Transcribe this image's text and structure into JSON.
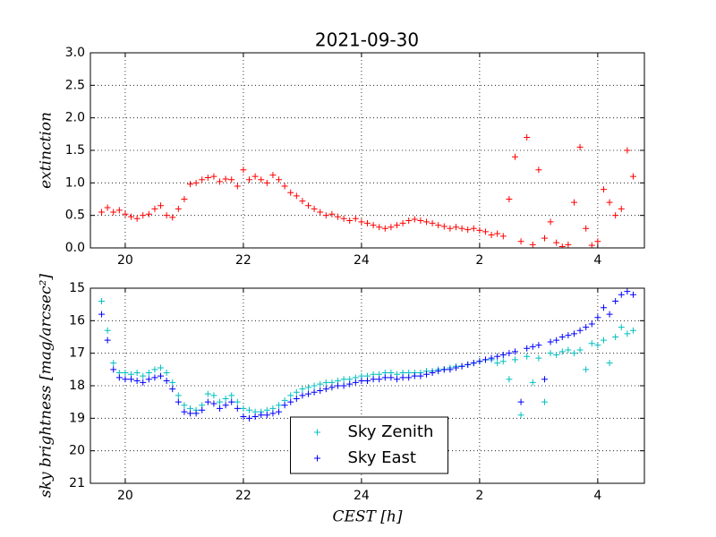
{
  "title": "2021-09-30",
  "chart_data": [
    {
      "type": "scatter",
      "ylabel": "extinction",
      "color": "#ff0000",
      "x": [
        19.6,
        19.7,
        19.8,
        19.9,
        20.0,
        20.1,
        20.2,
        20.3,
        20.4,
        20.5,
        20.6,
        20.7,
        20.8,
        20.9,
        21.0,
        21.1,
        21.2,
        21.3,
        21.4,
        21.5,
        21.6,
        21.7,
        21.8,
        21.9,
        22.0,
        22.1,
        22.2,
        22.3,
        22.4,
        22.5,
        22.6,
        22.7,
        22.8,
        22.9,
        23.0,
        23.1,
        23.2,
        23.3,
        23.4,
        23.5,
        23.6,
        23.7,
        23.8,
        23.9,
        24.0,
        24.1,
        24.2,
        24.3,
        24.4,
        24.5,
        24.6,
        24.7,
        24.8,
        24.9,
        25.0,
        25.1,
        25.2,
        25.3,
        25.4,
        25.5,
        25.6,
        25.7,
        25.8,
        25.9,
        26.0,
        26.1,
        26.2,
        26.3,
        26.4,
        26.5,
        26.6,
        26.7,
        26.8,
        26.9,
        27.0,
        27.1,
        27.2,
        27.3,
        27.4,
        27.5,
        27.6,
        27.7,
        27.8,
        27.9,
        28.0,
        28.1,
        28.2,
        28.3,
        28.4,
        28.5,
        28.6
      ],
      "values": [
        0.55,
        0.62,
        0.55,
        0.58,
        0.52,
        0.48,
        0.45,
        0.5,
        0.52,
        0.6,
        0.65,
        0.5,
        0.47,
        0.6,
        0.75,
        0.98,
        1.0,
        1.05,
        1.08,
        1.1,
        1.02,
        1.06,
        1.05,
        0.95,
        1.2,
        1.05,
        1.1,
        1.05,
        1.0,
        1.12,
        1.05,
        0.95,
        0.85,
        0.8,
        0.72,
        0.65,
        0.6,
        0.55,
        0.5,
        0.52,
        0.48,
        0.45,
        0.42,
        0.45,
        0.4,
        0.38,
        0.35,
        0.32,
        0.3,
        0.32,
        0.35,
        0.38,
        0.42,
        0.44,
        0.42,
        0.4,
        0.38,
        0.35,
        0.33,
        0.3,
        0.32,
        0.3,
        0.28,
        0.3,
        0.27,
        0.25,
        0.2,
        0.22,
        0.18,
        0.75,
        1.4,
        0.1,
        1.7,
        0.05,
        1.2,
        0.15,
        0.4,
        0.08,
        0.02,
        0.05,
        0.7,
        1.55,
        0.3,
        0.04,
        0.1,
        0.9,
        0.7,
        0.5,
        0.6,
        1.5,
        1.1
      ],
      "xlim": [
        19.41,
        28.79
      ],
      "xticks": [
        20,
        22,
        24,
        {
          "value": 26,
          "label": "2"
        },
        {
          "value": 28,
          "label": "4"
        }
      ],
      "ylim": [
        0,
        3
      ],
      "yticks": [
        {
          "value": 0,
          "label": "0.0"
        },
        {
          "value": 0.5,
          "label": "0.5"
        },
        {
          "value": 1,
          "label": "1.0"
        },
        {
          "value": 1.5,
          "label": "1.5"
        },
        {
          "value": 2,
          "label": "2.0"
        },
        {
          "value": 2.5,
          "label": "2.5"
        },
        {
          "value": 3,
          "label": "3.0"
        }
      ],
      "grid": true
    },
    {
      "type": "scatter",
      "ylabel": "sky brightness [mag/arcsec²]",
      "xlabel": "CEST [h]",
      "x": [
        19.6,
        19.7,
        19.8,
        19.9,
        20.0,
        20.1,
        20.2,
        20.3,
        20.4,
        20.5,
        20.6,
        20.7,
        20.8,
        20.9,
        21.0,
        21.1,
        21.2,
        21.3,
        21.4,
        21.5,
        21.6,
        21.7,
        21.8,
        21.9,
        22.0,
        22.1,
        22.2,
        22.3,
        22.4,
        22.5,
        22.6,
        22.7,
        22.8,
        22.9,
        23.0,
        23.1,
        23.2,
        23.3,
        23.4,
        23.5,
        23.6,
        23.7,
        23.8,
        23.9,
        24.0,
        24.1,
        24.2,
        24.3,
        24.4,
        24.5,
        24.6,
        24.7,
        24.8,
        24.9,
        25.0,
        25.1,
        25.2,
        25.3,
        25.4,
        25.5,
        25.6,
        25.7,
        25.8,
        25.9,
        26.0,
        26.1,
        26.2,
        26.3,
        26.4,
        26.5,
        26.6,
        26.7,
        26.8,
        26.9,
        27.0,
        27.1,
        27.2,
        27.3,
        27.4,
        27.5,
        27.6,
        27.7,
        27.8,
        27.9,
        28.0,
        28.1,
        28.2,
        28.3,
        28.4,
        28.5,
        28.6
      ],
      "series": [
        {
          "name": "Sky Zenith",
          "color": "#00bfbf",
          "values": [
            15.4,
            16.3,
            17.3,
            17.6,
            17.6,
            17.65,
            17.6,
            17.7,
            17.6,
            17.5,
            17.45,
            17.6,
            17.9,
            18.3,
            18.6,
            18.7,
            18.75,
            18.6,
            18.25,
            18.3,
            18.5,
            18.4,
            18.3,
            18.5,
            18.7,
            18.75,
            18.8,
            18.8,
            18.75,
            18.7,
            18.6,
            18.45,
            18.3,
            18.2,
            18.1,
            18.05,
            18.0,
            17.95,
            17.9,
            17.9,
            17.85,
            17.8,
            17.8,
            17.75,
            17.7,
            17.7,
            17.65,
            17.65,
            17.6,
            17.6,
            17.65,
            17.6,
            17.6,
            17.6,
            17.6,
            17.55,
            17.55,
            17.5,
            17.5,
            17.45,
            17.4,
            17.4,
            17.35,
            17.3,
            17.25,
            17.2,
            17.2,
            17.3,
            17.25,
            17.8,
            17.2,
            18.9,
            17.1,
            17.9,
            17.15,
            18.5,
            17.0,
            17.05,
            16.95,
            16.9,
            17.0,
            16.9,
            17.5,
            16.7,
            16.75,
            16.6,
            17.3,
            16.5,
            16.2,
            16.4,
            16.3
          ]
        },
        {
          "name": "Sky East",
          "color": "#0000ff",
          "values": [
            15.8,
            16.6,
            17.5,
            17.75,
            17.8,
            17.8,
            17.85,
            17.9,
            17.8,
            17.75,
            17.7,
            17.85,
            18.1,
            18.5,
            18.8,
            18.85,
            18.85,
            18.75,
            18.5,
            18.55,
            18.7,
            18.6,
            18.5,
            18.7,
            18.95,
            19.0,
            18.95,
            18.9,
            18.9,
            18.85,
            18.8,
            18.6,
            18.5,
            18.4,
            18.3,
            18.25,
            18.2,
            18.15,
            18.1,
            18.05,
            18.0,
            18.0,
            17.95,
            17.9,
            17.85,
            17.85,
            17.8,
            17.8,
            17.75,
            17.75,
            17.8,
            17.75,
            17.75,
            17.7,
            17.7,
            17.65,
            17.6,
            17.55,
            17.5,
            17.5,
            17.45,
            17.4,
            17.35,
            17.3,
            17.25,
            17.2,
            17.15,
            17.1,
            17.05,
            17.0,
            16.95,
            18.5,
            16.85,
            16.8,
            16.75,
            17.8,
            16.65,
            16.6,
            16.5,
            16.45,
            16.4,
            16.3,
            16.2,
            16.1,
            15.9,
            15.6,
            15.8,
            15.4,
            15.2,
            15.1,
            15.2
          ]
        }
      ],
      "xlim": [
        19.41,
        28.79
      ],
      "xticks": [
        20,
        22,
        24,
        {
          "value": 26,
          "label": "2"
        },
        {
          "value": 28,
          "label": "4"
        }
      ],
      "ylim": [
        21,
        15
      ],
      "yticks": [
        15,
        16,
        17,
        18,
        19,
        20,
        21
      ],
      "grid": true,
      "legend": "lower center"
    }
  ]
}
